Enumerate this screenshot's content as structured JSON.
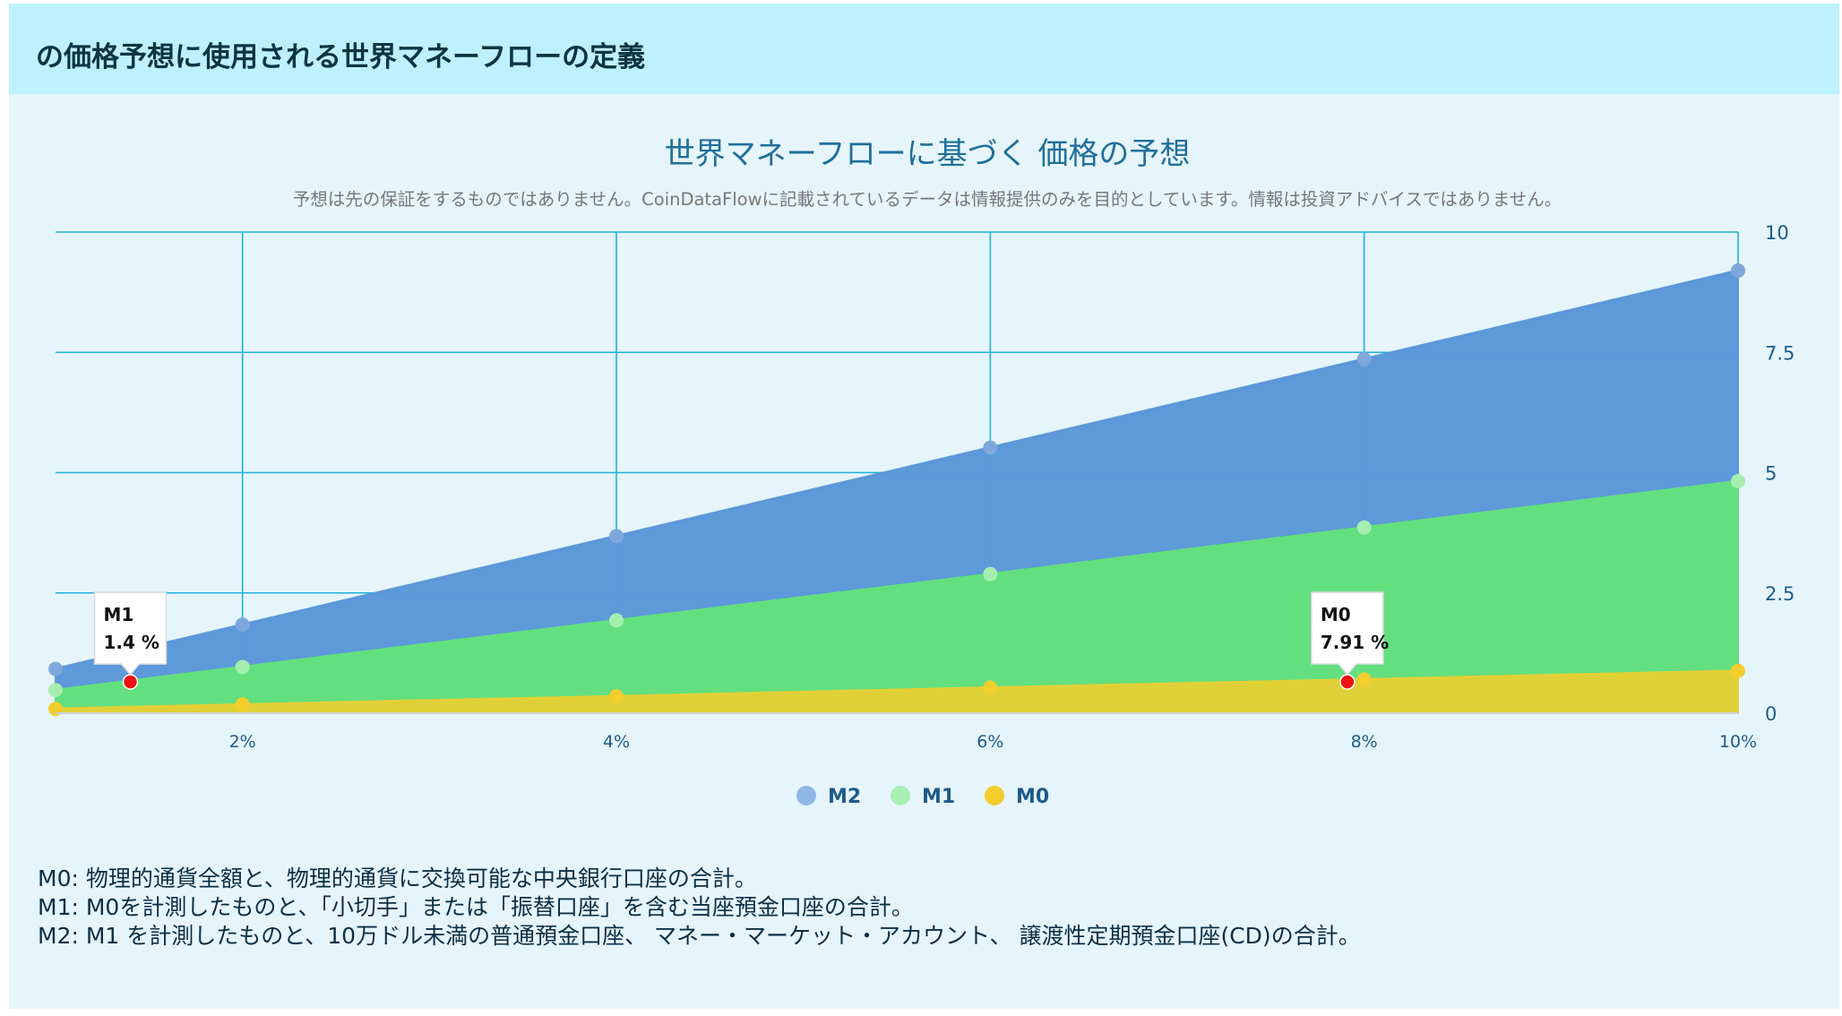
{
  "header": {
    "title": "の価格予想に使用される世界マネーフローの定義"
  },
  "definitions": [
    "M0: 物理的通貨全額と、物理的通貨に交換可能な中央銀行口座の合計。",
    "M1: M0を計測したものと、「小切手」または「振替口座」を含む当座預金口座の合計。",
    "M2: M1 を計測したものと、10万ドル未満の普通預金口座、 マネー・マーケット・アカウント、 譲渡性定期預金口座(CD)の合計。"
  ],
  "chart_data": {
    "type": "area",
    "title": "世界マネーフローに基づく 価格の予想",
    "subtitle": "予想は先の保証をするものではありません。CoinDataFlowに記載されているデータは情報提供のみを目的としています。情報は投資アドバイスではありません。",
    "x": [
      1,
      2,
      4,
      6,
      8,
      10
    ],
    "x_ticks": [
      2,
      4,
      6,
      8,
      10
    ],
    "x_tick_labels": [
      "2%",
      "4%",
      "6%",
      "8%",
      "10%"
    ],
    "xlim": [
      1,
      10
    ],
    "ylim": [
      0,
      10
    ],
    "y_ticks": [
      0,
      2.5,
      5,
      7.5,
      10
    ],
    "y_tick_labels": [
      "0",
      "2.5",
      "5",
      "7.5",
      "10"
    ],
    "y_axis_side": "right",
    "grid": true,
    "series": [
      {
        "name": "M2",
        "color": "#5b97d9",
        "values": [
          0.92,
          1.84,
          3.68,
          5.52,
          7.36,
          9.2
        ]
      },
      {
        "name": "M1",
        "color": "#63e07d",
        "values": [
          0.48,
          0.96,
          1.93,
          2.89,
          3.86,
          4.82
        ]
      },
      {
        "name": "M0",
        "color": "#e2cf35",
        "values": [
          0.09,
          0.18,
          0.35,
          0.53,
          0.7,
          0.88
        ]
      }
    ],
    "legend": {
      "position": "bottom-center",
      "items": [
        {
          "label": "M2",
          "color": "#8fb7e6"
        },
        {
          "label": "M1",
          "color": "#a8f0b4"
        },
        {
          "label": "M0",
          "color": "#f2cd2c"
        }
      ]
    },
    "annotations": [
      {
        "series": "M1",
        "label": "1.4 %",
        "x": 1.4,
        "y": 0.65,
        "color": "#ee1111"
      },
      {
        "series": "M0",
        "label": "7.91 %",
        "x": 7.91,
        "y": 0.65,
        "color": "#ee1111"
      }
    ]
  }
}
